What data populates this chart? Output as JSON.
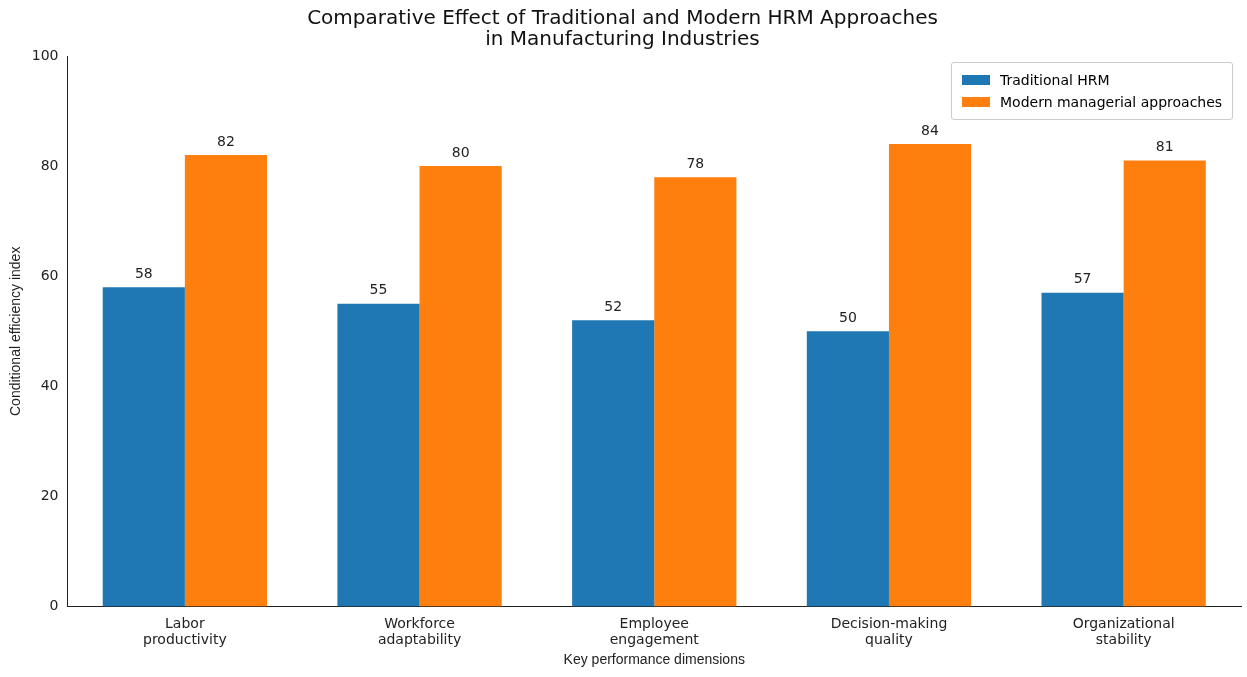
{
  "chart_data": {
    "type": "bar",
    "title": "Comparative Effect of Traditional and Modern HRM Approaches\nin Manufacturing Industries",
    "xlabel": "Key performance dimensions",
    "ylabel": "Conditional efficiency index",
    "categories": [
      "Labor\nproductivity",
      "Workforce\nadaptability",
      "Employee\nengagement",
      "Decision-making\nquality",
      "Organizational\nstability"
    ],
    "series": [
      {
        "name": "Traditional HRM",
        "color": "#1f77b4",
        "values": [
          58,
          55,
          52,
          50,
          57
        ]
      },
      {
        "name": "Modern managerial approaches",
        "color": "#ff7f0e",
        "values": [
          82,
          80,
          78,
          84,
          81
        ]
      }
    ],
    "ylim": [
      0,
      100
    ],
    "yticks": [
      0,
      20,
      40,
      60,
      80,
      100
    ],
    "grid": false,
    "legend": "top right",
    "data_labels": true
  }
}
